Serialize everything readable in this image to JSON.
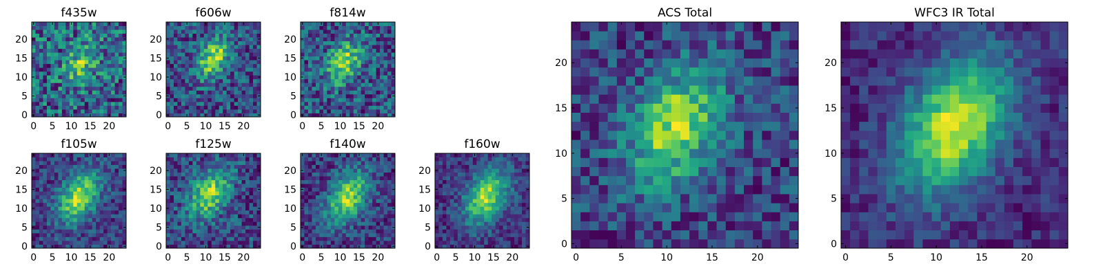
{
  "chart_data": [
    {
      "type": "heatmap",
      "title": "f435w",
      "colormap": "viridis",
      "grid_size": 25,
      "seed": 11,
      "peak": [
        13,
        14
      ],
      "sigma": 3.2,
      "amp": 0.35,
      "noise": 0.55,
      "xticks": [
        "0",
        "5",
        "10",
        "15",
        "20"
      ],
      "yticks": [
        "0",
        "5",
        "10",
        "15",
        "20"
      ],
      "tick_values": [
        0,
        5,
        10,
        15,
        20
      ]
    },
    {
      "type": "heatmap",
      "title": "f606w",
      "colormap": "viridis",
      "grid_size": 25,
      "seed": 23,
      "peak": [
        12,
        15
      ],
      "sigma": 3.0,
      "amp": 0.55,
      "noise": 0.45,
      "xticks": [
        "0",
        "5",
        "10",
        "15",
        "20"
      ],
      "yticks": [
        "0",
        "5",
        "10",
        "15",
        "20"
      ],
      "tick_values": [
        0,
        5,
        10,
        15,
        20
      ]
    },
    {
      "type": "heatmap",
      "title": "f814w",
      "colormap": "viridis",
      "grid_size": 25,
      "seed": 37,
      "peak": [
        11,
        14
      ],
      "sigma": 3.2,
      "amp": 0.5,
      "noise": 0.5,
      "xticks": [
        "0",
        "5",
        "10",
        "15",
        "20"
      ],
      "yticks": [
        "0",
        "5",
        "10",
        "15",
        "20"
      ],
      "tick_values": [
        0,
        5,
        10,
        15,
        20
      ]
    },
    {
      "type": "heatmap",
      "title": "f105w",
      "colormap": "viridis",
      "grid_size": 25,
      "seed": 41,
      "peak": [
        12,
        13
      ],
      "sigma": 3.8,
      "amp": 0.65,
      "noise": 0.35,
      "xticks": [
        "0",
        "5",
        "10",
        "15",
        "20"
      ],
      "yticks": [
        "0",
        "5",
        "10",
        "15",
        "20"
      ],
      "tick_values": [
        0,
        5,
        10,
        15,
        20
      ]
    },
    {
      "type": "heatmap",
      "title": "f125w",
      "colormap": "viridis",
      "grid_size": 25,
      "seed": 53,
      "peak": [
        11,
        14
      ],
      "sigma": 3.8,
      "amp": 0.55,
      "noise": 0.42,
      "xticks": [
        "0",
        "5",
        "10",
        "15",
        "20"
      ],
      "yticks": [
        "0",
        "5",
        "10",
        "15",
        "20"
      ],
      "tick_values": [
        0,
        5,
        10,
        15,
        20
      ]
    },
    {
      "type": "heatmap",
      "title": "f140w",
      "colormap": "viridis",
      "grid_size": 25,
      "seed": 67,
      "peak": [
        12,
        13
      ],
      "sigma": 3.8,
      "amp": 0.6,
      "noise": 0.35,
      "xticks": [
        "0",
        "5",
        "10",
        "15",
        "20"
      ],
      "yticks": [
        "0",
        "5",
        "10",
        "15",
        "20"
      ],
      "tick_values": [
        0,
        5,
        10,
        15,
        20
      ]
    },
    {
      "type": "heatmap",
      "title": "f160w",
      "colormap": "viridis",
      "grid_size": 25,
      "seed": 79,
      "peak": [
        13,
        13
      ],
      "sigma": 4.0,
      "amp": 0.65,
      "noise": 0.3,
      "xticks": [
        "0",
        "5",
        "10",
        "15",
        "20"
      ],
      "yticks": [
        "0",
        "5",
        "10",
        "15",
        "20"
      ],
      "tick_values": [
        0,
        5,
        10,
        15,
        20
      ]
    },
    {
      "type": "heatmap",
      "title": "ACS Total",
      "colormap": "viridis",
      "grid_size": 25,
      "seed": 97,
      "peak": [
        11,
        13
      ],
      "sigma": 3.6,
      "amp": 0.6,
      "noise": 0.38,
      "xticks": [
        "0",
        "5",
        "10",
        "15",
        "20"
      ],
      "yticks": [
        "0",
        "5",
        "10",
        "15",
        "20"
      ],
      "tick_values": [
        0,
        5,
        10,
        15,
        20
      ]
    },
    {
      "type": "heatmap",
      "title": "WFC3 IR Total",
      "colormap": "viridis",
      "grid_size": 25,
      "seed": 113,
      "peak": [
        12,
        13
      ],
      "sigma": 4.2,
      "amp": 0.7,
      "noise": 0.22,
      "xticks": [
        "0",
        "5",
        "10",
        "15",
        "20"
      ],
      "yticks": [
        "0",
        "5",
        "10",
        "15",
        "20"
      ],
      "tick_values": [
        0,
        5,
        10,
        15,
        20
      ]
    }
  ]
}
